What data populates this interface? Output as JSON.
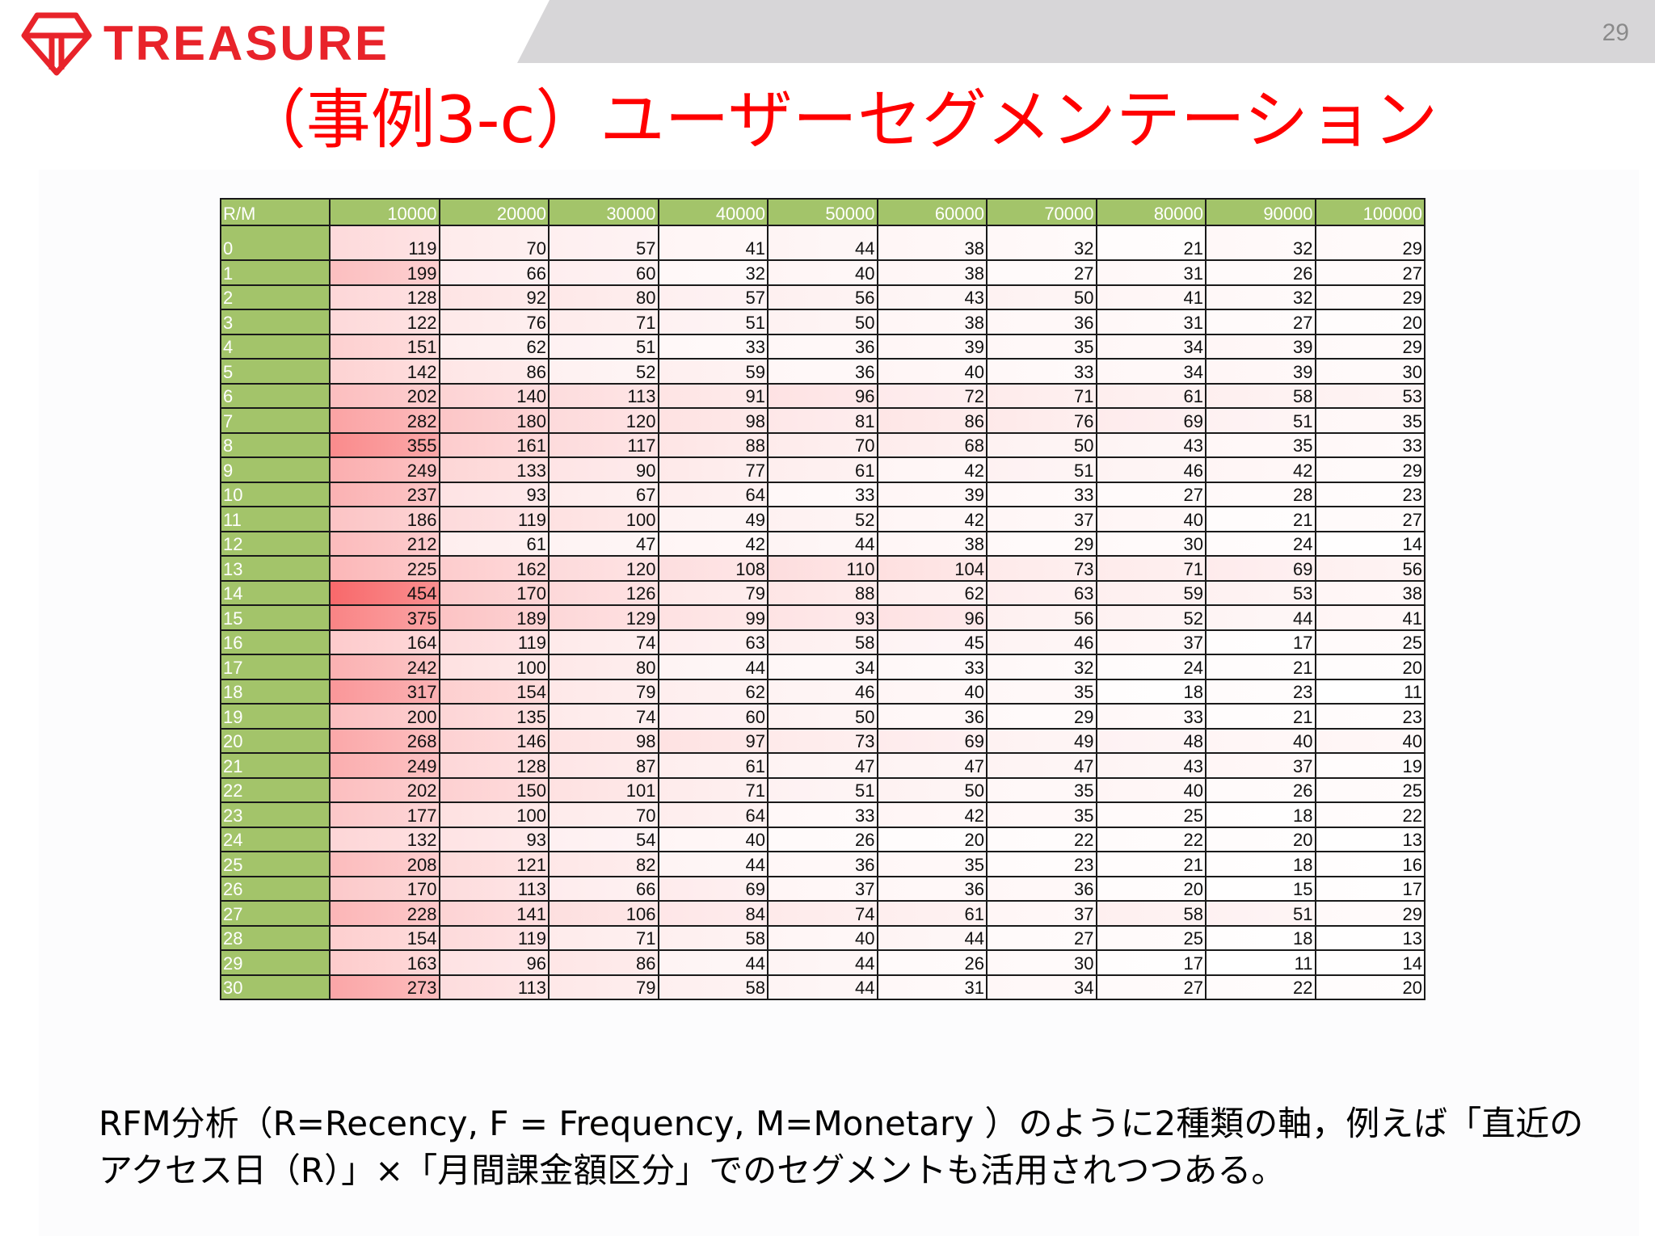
{
  "header": {
    "logo_text": "TREASURE",
    "slide_number": "29"
  },
  "title": "（事例3-c）ユーザーセグメンテーション",
  "table": {
    "corner_label": "R/M",
    "columns": [
      "10000",
      "20000",
      "30000",
      "40000",
      "50000",
      "60000",
      "70000",
      "80000",
      "90000",
      "100000"
    ],
    "rows": [
      {
        "r": "0",
        "values": [
          119,
          70,
          57,
          41,
          44,
          38,
          32,
          21,
          32,
          29
        ]
      },
      {
        "r": "1",
        "values": [
          199,
          66,
          60,
          32,
          40,
          38,
          27,
          31,
          26,
          27
        ]
      },
      {
        "r": "2",
        "values": [
          128,
          92,
          80,
          57,
          56,
          43,
          50,
          41,
          32,
          29
        ]
      },
      {
        "r": "3",
        "values": [
          122,
          76,
          71,
          51,
          50,
          38,
          36,
          31,
          27,
          20
        ]
      },
      {
        "r": "4",
        "values": [
          151,
          62,
          51,
          33,
          36,
          39,
          35,
          34,
          39,
          29
        ]
      },
      {
        "r": "5",
        "values": [
          142,
          86,
          52,
          59,
          36,
          40,
          33,
          34,
          39,
          30
        ]
      },
      {
        "r": "6",
        "values": [
          202,
          140,
          113,
          91,
          96,
          72,
          71,
          61,
          58,
          53
        ]
      },
      {
        "r": "7",
        "values": [
          282,
          180,
          120,
          98,
          81,
          86,
          76,
          69,
          51,
          35
        ]
      },
      {
        "r": "8",
        "values": [
          355,
          161,
          117,
          88,
          70,
          68,
          50,
          43,
          35,
          33
        ]
      },
      {
        "r": "9",
        "values": [
          249,
          133,
          90,
          77,
          61,
          42,
          51,
          46,
          42,
          29
        ]
      },
      {
        "r": "10",
        "values": [
          237,
          93,
          67,
          64,
          33,
          39,
          33,
          27,
          28,
          23
        ]
      },
      {
        "r": "11",
        "values": [
          186,
          119,
          100,
          49,
          52,
          42,
          37,
          40,
          21,
          27
        ]
      },
      {
        "r": "12",
        "values": [
          212,
          61,
          47,
          42,
          44,
          38,
          29,
          30,
          24,
          14
        ]
      },
      {
        "r": "13",
        "values": [
          225,
          162,
          120,
          108,
          110,
          104,
          73,
          71,
          69,
          56
        ]
      },
      {
        "r": "14",
        "values": [
          454,
          170,
          126,
          79,
          88,
          62,
          63,
          59,
          53,
          38
        ]
      },
      {
        "r": "15",
        "values": [
          375,
          189,
          129,
          99,
          93,
          96,
          56,
          52,
          44,
          41
        ]
      },
      {
        "r": "16",
        "values": [
          164,
          119,
          74,
          63,
          58,
          45,
          46,
          37,
          17,
          25
        ]
      },
      {
        "r": "17",
        "values": [
          242,
          100,
          80,
          44,
          34,
          33,
          32,
          24,
          21,
          20
        ]
      },
      {
        "r": "18",
        "values": [
          317,
          154,
          79,
          62,
          46,
          40,
          35,
          18,
          23,
          11
        ]
      },
      {
        "r": "19",
        "values": [
          200,
          135,
          74,
          60,
          50,
          36,
          29,
          33,
          21,
          23
        ]
      },
      {
        "r": "20",
        "values": [
          268,
          146,
          98,
          97,
          73,
          69,
          49,
          48,
          40,
          40
        ]
      },
      {
        "r": "21",
        "values": [
          249,
          128,
          87,
          61,
          47,
          47,
          47,
          43,
          37,
          19
        ]
      },
      {
        "r": "22",
        "values": [
          202,
          150,
          101,
          71,
          51,
          50,
          35,
          40,
          26,
          25
        ]
      },
      {
        "r": "23",
        "values": [
          177,
          100,
          70,
          64,
          33,
          42,
          35,
          25,
          18,
          22
        ]
      },
      {
        "r": "24",
        "values": [
          132,
          93,
          54,
          40,
          26,
          20,
          22,
          22,
          20,
          13
        ]
      },
      {
        "r": "25",
        "values": [
          208,
          121,
          82,
          44,
          36,
          35,
          23,
          21,
          18,
          16
        ]
      },
      {
        "r": "26",
        "values": [
          170,
          113,
          66,
          69,
          37,
          36,
          36,
          20,
          15,
          17
        ]
      },
      {
        "r": "27",
        "values": [
          228,
          141,
          106,
          84,
          74,
          61,
          37,
          58,
          51,
          29
        ]
      },
      {
        "r": "28",
        "values": [
          154,
          119,
          71,
          58,
          40,
          44,
          27,
          25,
          18,
          13
        ]
      },
      {
        "r": "29",
        "values": [
          163,
          96,
          86,
          44,
          44,
          26,
          30,
          17,
          11,
          14
        ]
      },
      {
        "r": "30",
        "values": [
          273,
          113,
          79,
          58,
          44,
          31,
          34,
          27,
          22,
          20
        ]
      }
    ]
  },
  "caption": {
    "line1": "RFM分析（R=Recency, F = Frequency, M=Monetary ）のように2種類の軸，例えば「直近の",
    "line2": "アクセス日（R）」×「月間課金額区分」でのセグメントも活用されつつある。"
  },
  "colors": {
    "brand_red": "#e8232a",
    "title_red": "#ff0000",
    "header_green": "#a3c46a",
    "heat_max": "#f8696b",
    "heat_min": "#ffffff",
    "top_band_gray": "#d7d6d8"
  }
}
